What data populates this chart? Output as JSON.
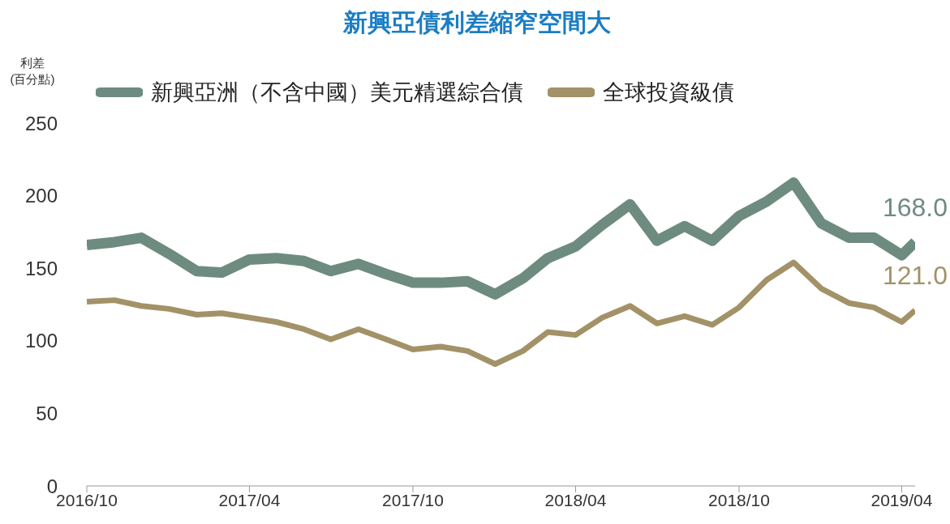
{
  "chart_data": {
    "type": "line",
    "title": "新興亞債利差縮窄空間大",
    "ylabel": "利差\n(百分點)",
    "x": [
      "2016-10-01",
      "2016-11-01",
      "2016-12-01",
      "2017-01-01",
      "2017-02-01",
      "2017-03-01",
      "2017-04-01",
      "2017-05-01",
      "2017-06-01",
      "2017-07-01",
      "2017-08-01",
      "2017-09-01",
      "2017-10-01",
      "2017-11-01",
      "2017-12-01",
      "2018-01-01",
      "2018-02-01",
      "2018-03-01",
      "2018-04-01",
      "2018-05-01",
      "2018-06-01",
      "2018-07-01",
      "2018-08-01",
      "2018-09-01",
      "2018-10-01",
      "2018-11-01",
      "2018-12-01",
      "2019-01-01",
      "2019-02-01",
      "2019-03-01",
      "2019-04-01",
      "2019-04-16"
    ],
    "series": [
      {
        "name": "新興亞洲（不含中國）美元精選綜合債",
        "color": "#6e8b80",
        "values": [
          166,
          168,
          171,
          160,
          148,
          147,
          156,
          157,
          155,
          148,
          153,
          146,
          140,
          140,
          141,
          132,
          143,
          157,
          165,
          180,
          194,
          169,
          179,
          169,
          186,
          196,
          209,
          181,
          171,
          171,
          159,
          168
        ],
        "value_labels": [
          null,
          null,
          null,
          null,
          null,
          null,
          null,
          null,
          null,
          null,
          null,
          null,
          null,
          null,
          null,
          null,
          null,
          null,
          null,
          null,
          null,
          null,
          null,
          null,
          null,
          null,
          null,
          null,
          null,
          null,
          null,
          "168.0"
        ]
      },
      {
        "name": "全球投資級債",
        "color": "#a39268",
        "values": [
          127,
          128,
          124,
          122,
          118,
          119,
          116,
          113,
          108,
          101,
          108,
          101,
          94,
          96,
          93,
          84,
          93,
          106,
          104,
          116,
          124,
          112,
          117,
          111,
          123,
          142,
          154,
          136,
          126,
          123,
          113,
          121
        ],
        "value_labels": [
          null,
          null,
          null,
          null,
          null,
          null,
          null,
          null,
          null,
          null,
          null,
          null,
          null,
          null,
          null,
          null,
          null,
          null,
          null,
          null,
          null,
          null,
          null,
          null,
          null,
          null,
          null,
          null,
          null,
          null,
          null,
          "121.0"
        ]
      }
    ],
    "xlim": [
      "2016-10-01",
      "2019-04-16"
    ],
    "xticks": [
      {
        "value": "2016-10-01",
        "label": "2016/10"
      },
      {
        "value": "2017-04-01",
        "label": "2017/04"
      },
      {
        "value": "2017-10-01",
        "label": "2017/10"
      },
      {
        "value": "2018-04-01",
        "label": "2018/04"
      },
      {
        "value": "2018-10-01",
        "label": "2018/10"
      },
      {
        "value": "2019-04-01",
        "label": "2019/04"
      }
    ],
    "ylim": [
      0,
      250
    ],
    "yticks": [
      0,
      50,
      100,
      150,
      200,
      250
    ],
    "grid": false,
    "legend": "top left",
    "marker": "none",
    "line_style": "solid"
  }
}
